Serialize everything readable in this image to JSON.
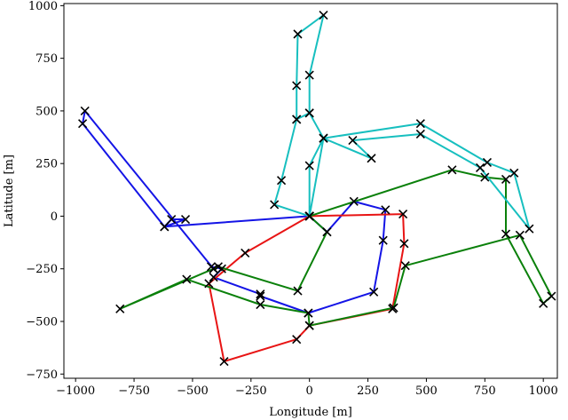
{
  "chart_data": {
    "type": "line",
    "title": "",
    "xlabel": "Longitude [m]",
    "ylabel": "Latitude [m]",
    "xlim": [
      -1050,
      1060
    ],
    "ylim": [
      -770,
      1010
    ],
    "xticks": [
      -1000,
      -750,
      -500,
      -250,
      0,
      250,
      500,
      750,
      1000
    ],
    "yticks": [
      -750,
      -500,
      -250,
      0,
      250,
      500,
      750,
      1000
    ],
    "xtick_labels": [
      "−1000",
      "−750",
      "−500",
      "−250",
      "0",
      "250",
      "500",
      "750",
      "1000"
    ],
    "ytick_labels": [
      "−750",
      "−500",
      "−250",
      "0",
      "250",
      "500",
      "750",
      "1000"
    ],
    "grid": false,
    "legend": false,
    "marker": "x",
    "series": [
      {
        "color": "#1414e6",
        "points": [
          [
            0,
            0
          ],
          [
            -620,
            -50
          ],
          [
            -590,
            -15
          ],
          [
            -530,
            -15
          ],
          [
            -620,
            -50
          ],
          [
            -970,
            440
          ],
          [
            -960,
            500
          ],
          [
            -410,
            -250
          ],
          [
            -420,
            -240
          ],
          [
            -375,
            -250
          ],
          [
            -410,
            -290
          ],
          [
            -210,
            -370
          ],
          [
            -210,
            -380
          ],
          [
            -5,
            -460
          ],
          [
            275,
            -360
          ],
          [
            315,
            -115
          ],
          [
            325,
            30
          ],
          [
            190,
            70
          ],
          [
            75,
            -75
          ],
          [
            0,
            0
          ]
        ]
      },
      {
        "color": "#e81414",
        "points": [
          [
            0,
            0
          ],
          [
            -275,
            -175
          ],
          [
            -430,
            -320
          ],
          [
            -365,
            -690
          ],
          [
            -55,
            -585
          ],
          [
            0,
            -520
          ],
          [
            355,
            -440
          ],
          [
            405,
            -130
          ],
          [
            400,
            10
          ],
          [
            0,
            0
          ]
        ]
      },
      {
        "color": "#0a800a",
        "points": [
          [
            0,
            0
          ],
          [
            610,
            220
          ],
          [
            750,
            185
          ],
          [
            840,
            175
          ],
          [
            840,
            -85
          ],
          [
            1000,
            -415
          ],
          [
            1035,
            -380
          ],
          [
            900,
            -90
          ],
          [
            410,
            -235
          ],
          [
            360,
            -435
          ],
          [
            0,
            -520
          ],
          [
            -5,
            -460
          ],
          [
            -210,
            -420
          ],
          [
            -525,
            -300
          ],
          [
            -810,
            -440
          ],
          [
            -410,
            -250
          ],
          [
            -390,
            -240
          ],
          [
            -50,
            -355
          ],
          [
            75,
            -75
          ],
          [
            0,
            0
          ]
        ]
      },
      {
        "color": "#17bfbf",
        "points": [
          [
            0,
            0
          ],
          [
            -150,
            55
          ],
          [
            -120,
            170
          ],
          [
            -55,
            460
          ],
          [
            -55,
            620
          ],
          [
            -50,
            865
          ],
          [
            60,
            955
          ],
          [
            0,
            670
          ],
          [
            0,
            490
          ],
          [
            -55,
            460
          ],
          [
            0,
            490
          ],
          [
            60,
            370
          ],
          [
            0,
            240
          ],
          [
            0,
            0
          ],
          [
            60,
            370
          ],
          [
            265,
            275
          ],
          [
            185,
            360
          ],
          [
            475,
            390
          ],
          [
            730,
            230
          ],
          [
            940,
            -60
          ],
          [
            875,
            205
          ],
          [
            760,
            255
          ],
          [
            475,
            440
          ],
          [
            60,
            370
          ],
          [
            0,
            0
          ]
        ]
      }
    ]
  }
}
